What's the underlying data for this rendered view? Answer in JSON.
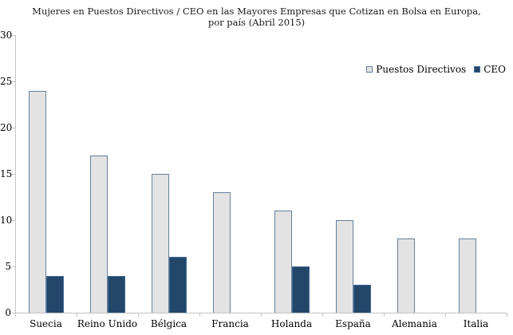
{
  "chart_data": {
    "type": "bar",
    "title": "Mujeres en Puestos Directivos / CEO en las Mayores Empresas que Cotizan en Bolsa en Europa, por país (Abril 2015)",
    "title_lines": [
      "Mujeres en Puestos Directivos / CEO en las Mayores Empresas que Cotizan en Bolsa en Europa,",
      "por país (Abril 2015)"
    ],
    "categories": [
      "Suecia",
      "Reino Unido",
      "Bélgica",
      "Francia",
      "Holanda",
      "España",
      "Alemania",
      "Italia"
    ],
    "series": [
      {
        "name": "Puestos Directivos",
        "values": [
          24,
          17,
          15,
          13,
          11,
          10,
          8,
          8
        ],
        "fill": "#e3e3e3",
        "border": "#66809c"
      },
      {
        "name": "CEO",
        "values": [
          4,
          4,
          6,
          0,
          5,
          3,
          0,
          0
        ],
        "fill": "#234769",
        "border": "#456b96"
      }
    ],
    "xlabel": "",
    "ylabel": "",
    "ylim": [
      0,
      30
    ],
    "yticks": [
      0,
      5,
      10,
      15,
      20,
      25,
      30
    ],
    "grid": false,
    "legend_position": "top-right"
  },
  "colors": {
    "axis": "#c3c3c3",
    "text": "#000000",
    "background": "#ffffff"
  }
}
